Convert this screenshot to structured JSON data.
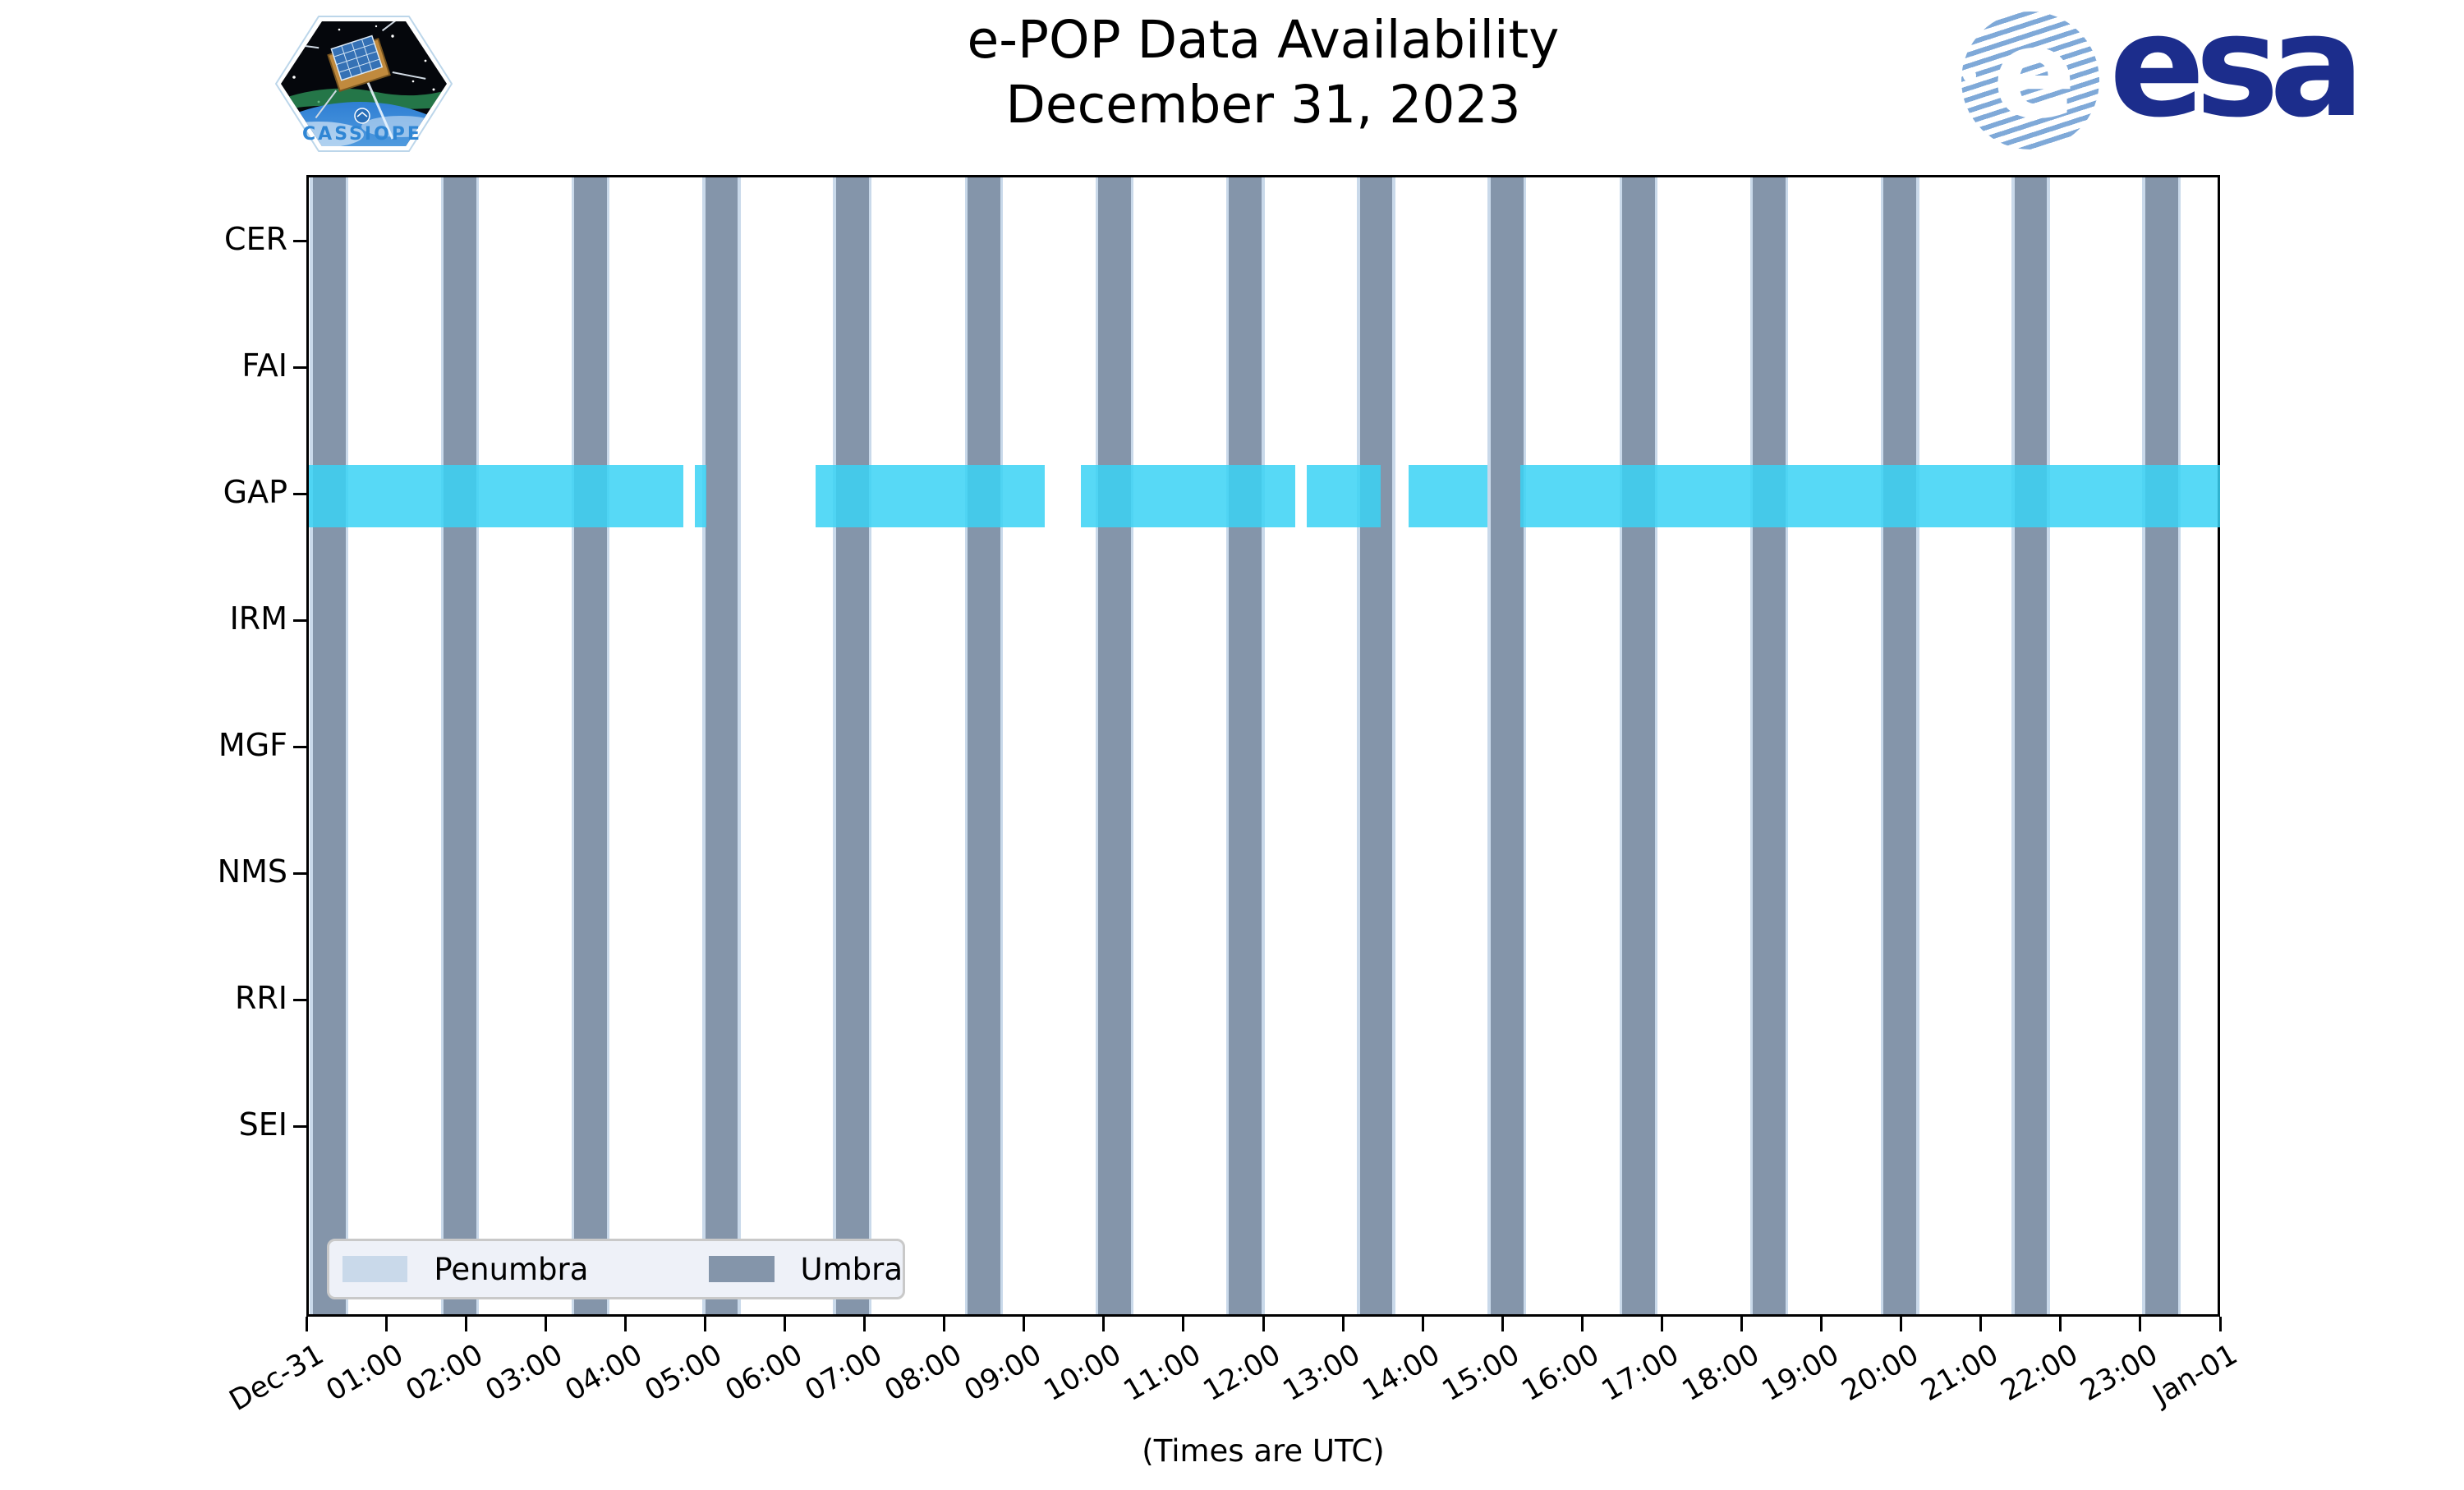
{
  "header": {
    "title_line1": "e-POP Data Availability",
    "title_line2": "December 31, 2023"
  },
  "logos": {
    "cassiope": {
      "caption": "CASSIOPE"
    },
    "esa": {
      "wordmark": "esa",
      "globe_letter": "e"
    }
  },
  "chart_data": {
    "type": "timeline-availability",
    "title": "e-POP Data Availability December 31, 2023",
    "x_axis": {
      "label": "(Times are UTC)",
      "range_hours": [
        0,
        24
      ],
      "tick_labels": [
        "Dec-31",
        "01:00",
        "02:00",
        "03:00",
        "04:00",
        "05:00",
        "06:00",
        "07:00",
        "08:00",
        "09:00",
        "10:00",
        "11:00",
        "12:00",
        "13:00",
        "14:00",
        "15:00",
        "16:00",
        "17:00",
        "18:00",
        "19:00",
        "20:00",
        "21:00",
        "22:00",
        "23:00",
        "Jan-01"
      ]
    },
    "y_axis": {
      "instruments": [
        "CER",
        "FAI",
        "GAP",
        "IRM",
        "MGF",
        "NMS",
        "RRI",
        "SEI"
      ]
    },
    "umbra_starts_hours": [
      0.05,
      1.69,
      3.33,
      4.97,
      6.61,
      8.26,
      9.9,
      11.54,
      13.18,
      14.82,
      16.47,
      18.11,
      19.75,
      21.39,
      23.03
    ],
    "umbra_duration_hours": 0.41,
    "penumbra_edge_hours": 0.035,
    "availability_hours": {
      "GAP": [
        [
          0.0,
          4.7
        ],
        [
          4.84,
          4.99
        ],
        [
          6.36,
          9.23
        ],
        [
          9.68,
          12.37
        ],
        [
          12.52,
          13.44
        ],
        [
          13.79,
          14.78
        ],
        [
          15.19,
          23.97
        ]
      ]
    },
    "legend": [
      {
        "label": "Penumbra",
        "color": "#c9d9ea"
      },
      {
        "label": "Umbra",
        "color": "#8495aa"
      }
    ],
    "colors": {
      "availability": "#3ad2f4",
      "umbra": "#8495aa",
      "penumbra": "#c9d9ea"
    },
    "legend_position": "lower left",
    "grid": false
  }
}
